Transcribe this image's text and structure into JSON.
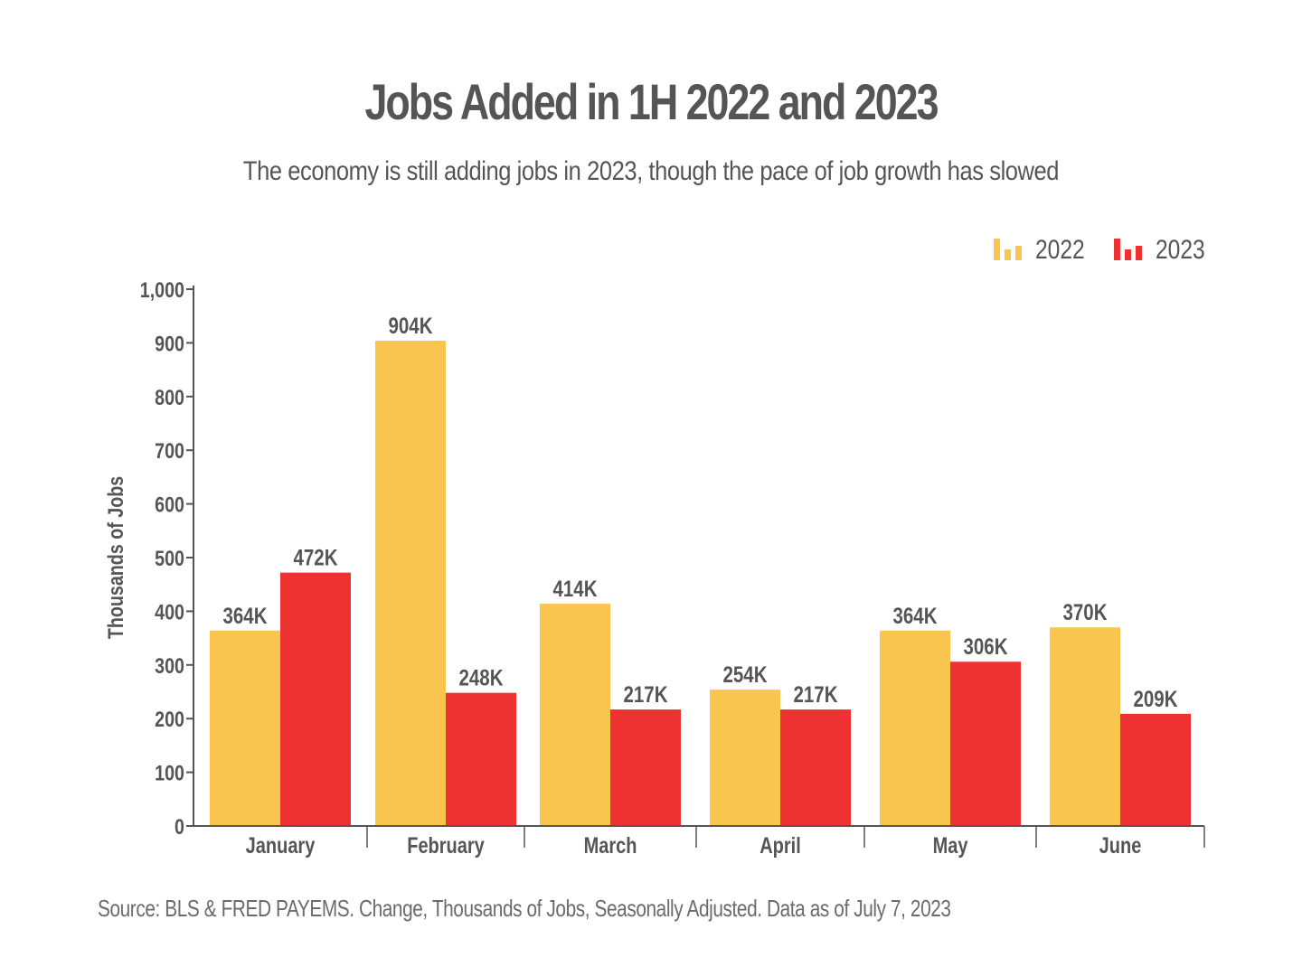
{
  "chart_data": {
    "type": "bar",
    "title": "Jobs Added in 1H 2022 and 2023",
    "subtitle": "The economy is still adding jobs in 2023, though the pace of job growth has slowed",
    "source": "Source: BLS & FRED PAYEMS. Change, Thousands of Jobs, Seasonally Adjusted. Data as of July 7, 2023",
    "xlabel": "",
    "ylabel": "Thousands of Jobs",
    "ylim": [
      0,
      1000
    ],
    "yticks": [
      "0",
      "100",
      "200",
      "300",
      "400",
      "500",
      "600",
      "700",
      "800",
      "900",
      "1,000"
    ],
    "categories": [
      "January",
      "February",
      "March",
      "April",
      "May",
      "June"
    ],
    "series": [
      {
        "name": "2022",
        "color": "#F9C54E",
        "values": [
          364,
          904,
          414,
          254,
          364,
          370
        ],
        "labels": [
          "364K",
          "904K",
          "414K",
          "254K",
          "364K",
          "370K"
        ]
      },
      {
        "name": "2023",
        "color": "#EE3131",
        "values": [
          472,
          248,
          217,
          217,
          306,
          209
        ],
        "labels": [
          "472K",
          "248K",
          "217K",
          "217K",
          "306K",
          "209K"
        ]
      }
    ],
    "legend_position": "top-right",
    "grid": false
  }
}
